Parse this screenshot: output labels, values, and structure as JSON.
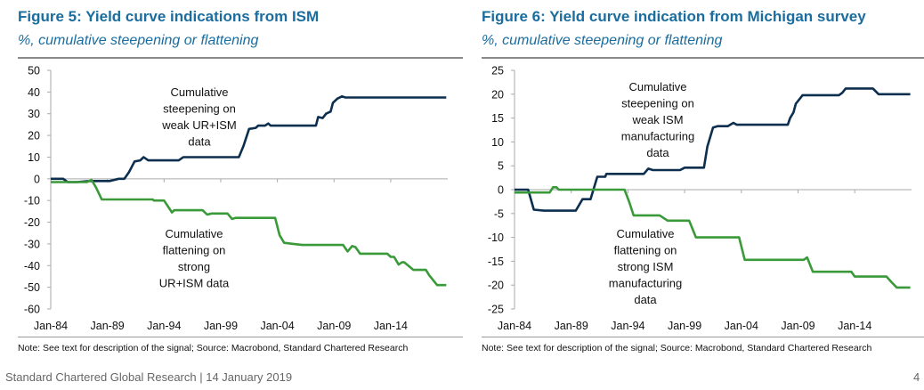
{
  "chart_data": [
    {
      "type": "line",
      "title": "Figure 5: Yield curve indications from ISM",
      "subtitle": "%, cumulative steepening or flattening",
      "xlabel": "",
      "ylabel": "",
      "ylim": [
        -60,
        50
      ],
      "yticks": [
        50,
        40,
        30,
        20,
        10,
        0,
        -10,
        -20,
        -30,
        -40,
        -50,
        -60
      ],
      "xticks": [
        {
          "x": 1984,
          "label": "Jan-84"
        },
        {
          "x": 1989,
          "label": "Jan-89"
        },
        {
          "x": 1994,
          "label": "Jan-94"
        },
        {
          "x": 1999,
          "label": "Jan-99"
        },
        {
          "x": 2004,
          "label": "Jan-04"
        },
        {
          "x": 2009,
          "label": "Jan-09"
        },
        {
          "x": 2014,
          "label": "Jan-14"
        }
      ],
      "grid": false,
      "series": [
        {
          "color": "#0d2f4f",
          "points": [
            [
              1984,
              0
            ],
            [
              1985.1,
              0
            ],
            [
              1985.5,
              -1.5
            ],
            [
              1986.3,
              -1.5
            ],
            [
              1987.4,
              -1
            ],
            [
              1989.2,
              -1
            ],
            [
              1990,
              0
            ],
            [
              1990.5,
              0
            ],
            [
              1990.9,
              3
            ],
            [
              1991.4,
              8
            ],
            [
              1991.9,
              8.5
            ],
            [
              1992.2,
              10
            ],
            [
              1992.6,
              8.5
            ],
            [
              1995.3,
              8.5
            ],
            [
              1995.7,
              10
            ],
            [
              2000.6,
              10
            ],
            [
              2001,
              15
            ],
            [
              2001.5,
              23
            ],
            [
              2002.1,
              23.5
            ],
            [
              2002.3,
              24.5
            ],
            [
              2002.9,
              24.5
            ],
            [
              2003.2,
              25.5
            ],
            [
              2003.4,
              24.5
            ],
            [
              2007.4,
              24.5
            ],
            [
              2007.6,
              28.5
            ],
            [
              2008,
              28
            ],
            [
              2008.3,
              30
            ],
            [
              2008.7,
              31
            ],
            [
              2008.9,
              35
            ],
            [
              2009.3,
              37
            ],
            [
              2009.7,
              38
            ],
            [
              2010,
              37.5
            ],
            [
              2018.9,
              37.5
            ]
          ]
        },
        {
          "color": "#3a9a3a",
          "points": [
            [
              1984,
              -1.5
            ],
            [
              1987.2,
              -1.5
            ],
            [
              1987.6,
              -0.5
            ],
            [
              1988,
              -4
            ],
            [
              1988.5,
              -9.5
            ],
            [
              1993,
              -9.5
            ],
            [
              1993.1,
              -10
            ],
            [
              1994,
              -10
            ],
            [
              1994.7,
              -15.5
            ],
            [
              1994.9,
              -14.5
            ],
            [
              1997.4,
              -14.5
            ],
            [
              1997.8,
              -16.5
            ],
            [
              1998.2,
              -16
            ],
            [
              1999.6,
              -16
            ],
            [
              2000,
              -18.5
            ],
            [
              2000.3,
              -18
            ],
            [
              2003.8,
              -18
            ],
            [
              2004.2,
              -26
            ],
            [
              2004.6,
              -29.5
            ],
            [
              2005.4,
              -30
            ],
            [
              2006.2,
              -30.5
            ],
            [
              2009.8,
              -30.5
            ],
            [
              2010.2,
              -33.5
            ],
            [
              2010.6,
              -31
            ],
            [
              2010.9,
              -31.5
            ],
            [
              2011.3,
              -34.5
            ],
            [
              2013.7,
              -34.5
            ],
            [
              2014,
              -36
            ],
            [
              2014.3,
              -36
            ],
            [
              2014.7,
              -39.5
            ],
            [
              2015,
              -38.5
            ],
            [
              2015.2,
              -38.5
            ],
            [
              2016,
              -42
            ],
            [
              2017.1,
              -42
            ],
            [
              2017.4,
              -44.5
            ],
            [
              2018.1,
              -49
            ],
            [
              2018.9,
              -49
            ]
          ]
        }
      ],
      "annotations": [
        [
          "Cumulative",
          "steepening on",
          "weak UR+ISM",
          "data"
        ],
        [
          "Cumulative",
          "flattening on",
          "strong",
          "UR+ISM data"
        ]
      ],
      "note": "Note: See text for description of the signal; Source: Macrobond, Standard Chartered Research"
    },
    {
      "type": "line",
      "title": "Figure 6: Yield curve indication from Michigan survey",
      "subtitle": "%, cumulative steepening or flattening",
      "xlabel": "",
      "ylabel": "",
      "ylim": [
        -25,
        25
      ],
      "yticks": [
        25,
        20,
        15,
        10,
        5,
        0,
        -5,
        -10,
        -15,
        -20,
        -25
      ],
      "xticks": [
        {
          "x": 1984,
          "label": "Jan-84"
        },
        {
          "x": 1989,
          "label": "Jan-89"
        },
        {
          "x": 1994,
          "label": "Jan-94"
        },
        {
          "x": 1999,
          "label": "Jan-99"
        },
        {
          "x": 2004,
          "label": "Jan-04"
        },
        {
          "x": 2009,
          "label": "Jan-09"
        },
        {
          "x": 2014,
          "label": "Jan-14"
        }
      ],
      "grid": false,
      "series": [
        {
          "color": "#0d2f4f",
          "points": [
            [
              1984,
              0
            ],
            [
              1985.2,
              0
            ],
            [
              1985.7,
              -4.2
            ],
            [
              1986.6,
              -4.4
            ],
            [
              1989.4,
              -4.4
            ],
            [
              1990,
              -2
            ],
            [
              1990.7,
              -2
            ],
            [
              1991.3,
              2.7
            ],
            [
              1992,
              2.7
            ],
            [
              1992.1,
              3.3
            ],
            [
              1995.4,
              3.3
            ],
            [
              1995.8,
              4.4
            ],
            [
              1996.2,
              4.1
            ],
            [
              1998.6,
              4.1
            ],
            [
              1999,
              4.6
            ],
            [
              2000.7,
              4.6
            ],
            [
              2001,
              9
            ],
            [
              2001.5,
              13
            ],
            [
              2001.9,
              13.3
            ],
            [
              2002.8,
              13.3
            ],
            [
              2003.3,
              14
            ],
            [
              2003.6,
              13.6
            ],
            [
              2008.1,
              13.6
            ],
            [
              2008.3,
              15
            ],
            [
              2008.6,
              16.2
            ],
            [
              2008.8,
              18
            ],
            [
              2009.4,
              19.8
            ],
            [
              2012.6,
              19.8
            ],
            [
              2012.9,
              20.3
            ],
            [
              2013.2,
              21.2
            ],
            [
              2015.6,
              21.2
            ],
            [
              2016.1,
              20
            ],
            [
              2018.9,
              20
            ]
          ]
        },
        {
          "color": "#3a9a3a",
          "points": [
            [
              1984,
              -0.6
            ],
            [
              1987.1,
              -0.6
            ],
            [
              1987.4,
              0.5
            ],
            [
              1987.7,
              0.5
            ],
            [
              1987.9,
              0
            ],
            [
              1993.7,
              0
            ],
            [
              1994.1,
              -2.5
            ],
            [
              1994.5,
              -5.4
            ],
            [
              1996.8,
              -5.4
            ],
            [
              1997.5,
              -6.5
            ],
            [
              1999.4,
              -6.5
            ],
            [
              2000,
              -10
            ],
            [
              2003.8,
              -10
            ],
            [
              2004.3,
              -14.7
            ],
            [
              2009.5,
              -14.7
            ],
            [
              2009.8,
              -14.2
            ],
            [
              2010.3,
              -17.2
            ],
            [
              2013.7,
              -17.2
            ],
            [
              2014,
              -18.2
            ],
            [
              2016.8,
              -18.2
            ],
            [
              2017.2,
              -19.3
            ],
            [
              2017.7,
              -20.5
            ],
            [
              2018.9,
              -20.5
            ]
          ]
        }
      ],
      "annotations": [
        [
          "Cumulative",
          "steepening on",
          "weak ISM",
          "manufacturing",
          "data"
        ],
        [
          "Cumulative",
          "flattening on",
          "strong ISM",
          "manufacturing",
          "data"
        ]
      ],
      "note": "Note: See text for description of the signal; Source: Macrobond, Standard Chartered Research"
    }
  ],
  "footer": {
    "text": "Standard Chartered Global Research | 14 January 2019",
    "page": "4"
  }
}
